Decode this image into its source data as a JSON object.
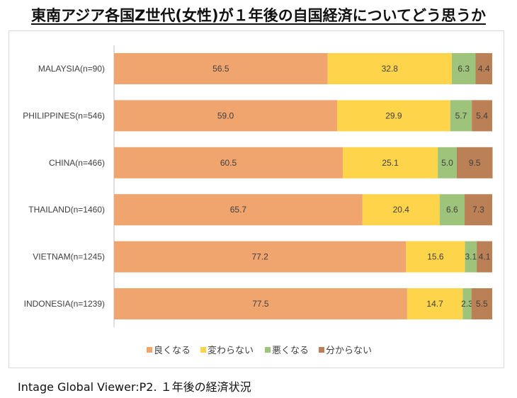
{
  "title": "東南アジア各国Z世代(女性)が１年後の自国経済についてどう思うか",
  "footer": "Intage Global Viewer:P2. １年後の経済状況",
  "chart_data": {
    "type": "bar",
    "orientation": "horizontal",
    "stacked": "100%",
    "title": "",
    "categories": [
      "MALAYSIA(n=90)",
      "PHILIPPINES(n=546)",
      "CHINA(n=466)",
      "THAILAND(n=1460)",
      "VIETNAM(n=1245)",
      "INDONESIA(n=1239)"
    ],
    "series": [
      {
        "name": "良くなる",
        "color": "#F0A46E",
        "values": [
          56.5,
          59.0,
          60.5,
          65.7,
          77.2,
          77.5
        ],
        "labels": [
          "56.5",
          "59.0",
          "60.5",
          "65.7",
          "77.2",
          "77.5"
        ]
      },
      {
        "name": "変わらない",
        "color": "#FDD44A",
        "values": [
          32.8,
          29.9,
          25.1,
          20.4,
          15.6,
          14.7
        ],
        "labels": [
          "32.8",
          "29.9",
          "25.1",
          "20.4",
          "15.6",
          "14.7"
        ]
      },
      {
        "name": "悪くなる",
        "color": "#9DC47A",
        "values": [
          6.3,
          5.7,
          5.0,
          6.6,
          3.1,
          2.3
        ],
        "labels": [
          "6.3",
          "5.7",
          "5.0",
          "6.6",
          "3.1",
          "2.3"
        ]
      },
      {
        "name": "分からない",
        "color": "#BB8055",
        "values": [
          4.4,
          5.4,
          9.5,
          7.3,
          4.1,
          5.5
        ],
        "labels": [
          "4.4",
          "5.4",
          "9.5",
          "7.3",
          "4.1",
          "5.5"
        ]
      }
    ],
    "xlim": [
      0,
      100
    ],
    "grid": false,
    "legend": "bottom"
  }
}
